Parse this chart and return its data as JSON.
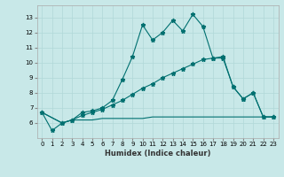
{
  "xlabel": "Humidex (Indice chaleur)",
  "bg_color": "#c8e8e8",
  "grid_color": "#b0d8d8",
  "line_color": "#007070",
  "xlim": [
    -0.5,
    23.5
  ],
  "ylim": [
    5.0,
    13.8
  ],
  "yticks": [
    6,
    7,
    8,
    9,
    10,
    11,
    12,
    13
  ],
  "xticks": [
    0,
    1,
    2,
    3,
    4,
    5,
    6,
    7,
    8,
    9,
    10,
    11,
    12,
    13,
    14,
    15,
    16,
    17,
    18,
    19,
    20,
    21,
    22,
    23
  ],
  "line1_x": [
    0,
    1,
    2,
    3,
    4,
    5,
    6,
    7,
    8,
    9,
    10,
    11,
    12,
    13,
    14,
    15,
    16,
    17,
    18,
    19,
    20,
    21,
    22,
    23
  ],
  "line1_y": [
    6.7,
    5.5,
    6.0,
    6.2,
    6.7,
    6.8,
    7.0,
    7.5,
    8.9,
    10.4,
    12.5,
    11.5,
    12.0,
    12.8,
    12.1,
    13.2,
    12.4,
    10.3,
    10.4,
    8.4,
    7.6,
    8.0,
    6.4,
    6.4
  ],
  "line2_x": [
    0,
    2,
    3,
    4,
    5,
    6,
    7,
    8,
    9,
    10,
    11,
    12,
    13,
    14,
    15,
    16,
    17,
    18,
    19,
    20,
    21,
    22,
    23
  ],
  "line2_y": [
    6.7,
    6.0,
    6.2,
    6.5,
    6.7,
    6.9,
    7.2,
    7.5,
    7.9,
    8.3,
    8.6,
    9.0,
    9.3,
    9.6,
    9.9,
    10.2,
    10.3,
    10.3,
    8.4,
    7.6,
    8.0,
    6.4,
    6.4
  ],
  "line3_x": [
    0,
    2,
    3,
    4,
    5,
    6,
    7,
    8,
    9,
    10,
    11,
    12,
    13,
    14,
    15,
    16,
    17,
    18,
    19,
    20,
    21,
    22,
    23
  ],
  "line3_y": [
    6.7,
    6.0,
    6.2,
    6.2,
    6.2,
    6.3,
    6.3,
    6.3,
    6.3,
    6.3,
    6.4,
    6.4,
    6.4,
    6.4,
    6.4,
    6.4,
    6.4,
    6.4,
    6.4,
    6.4,
    6.4,
    6.4,
    6.4
  ]
}
